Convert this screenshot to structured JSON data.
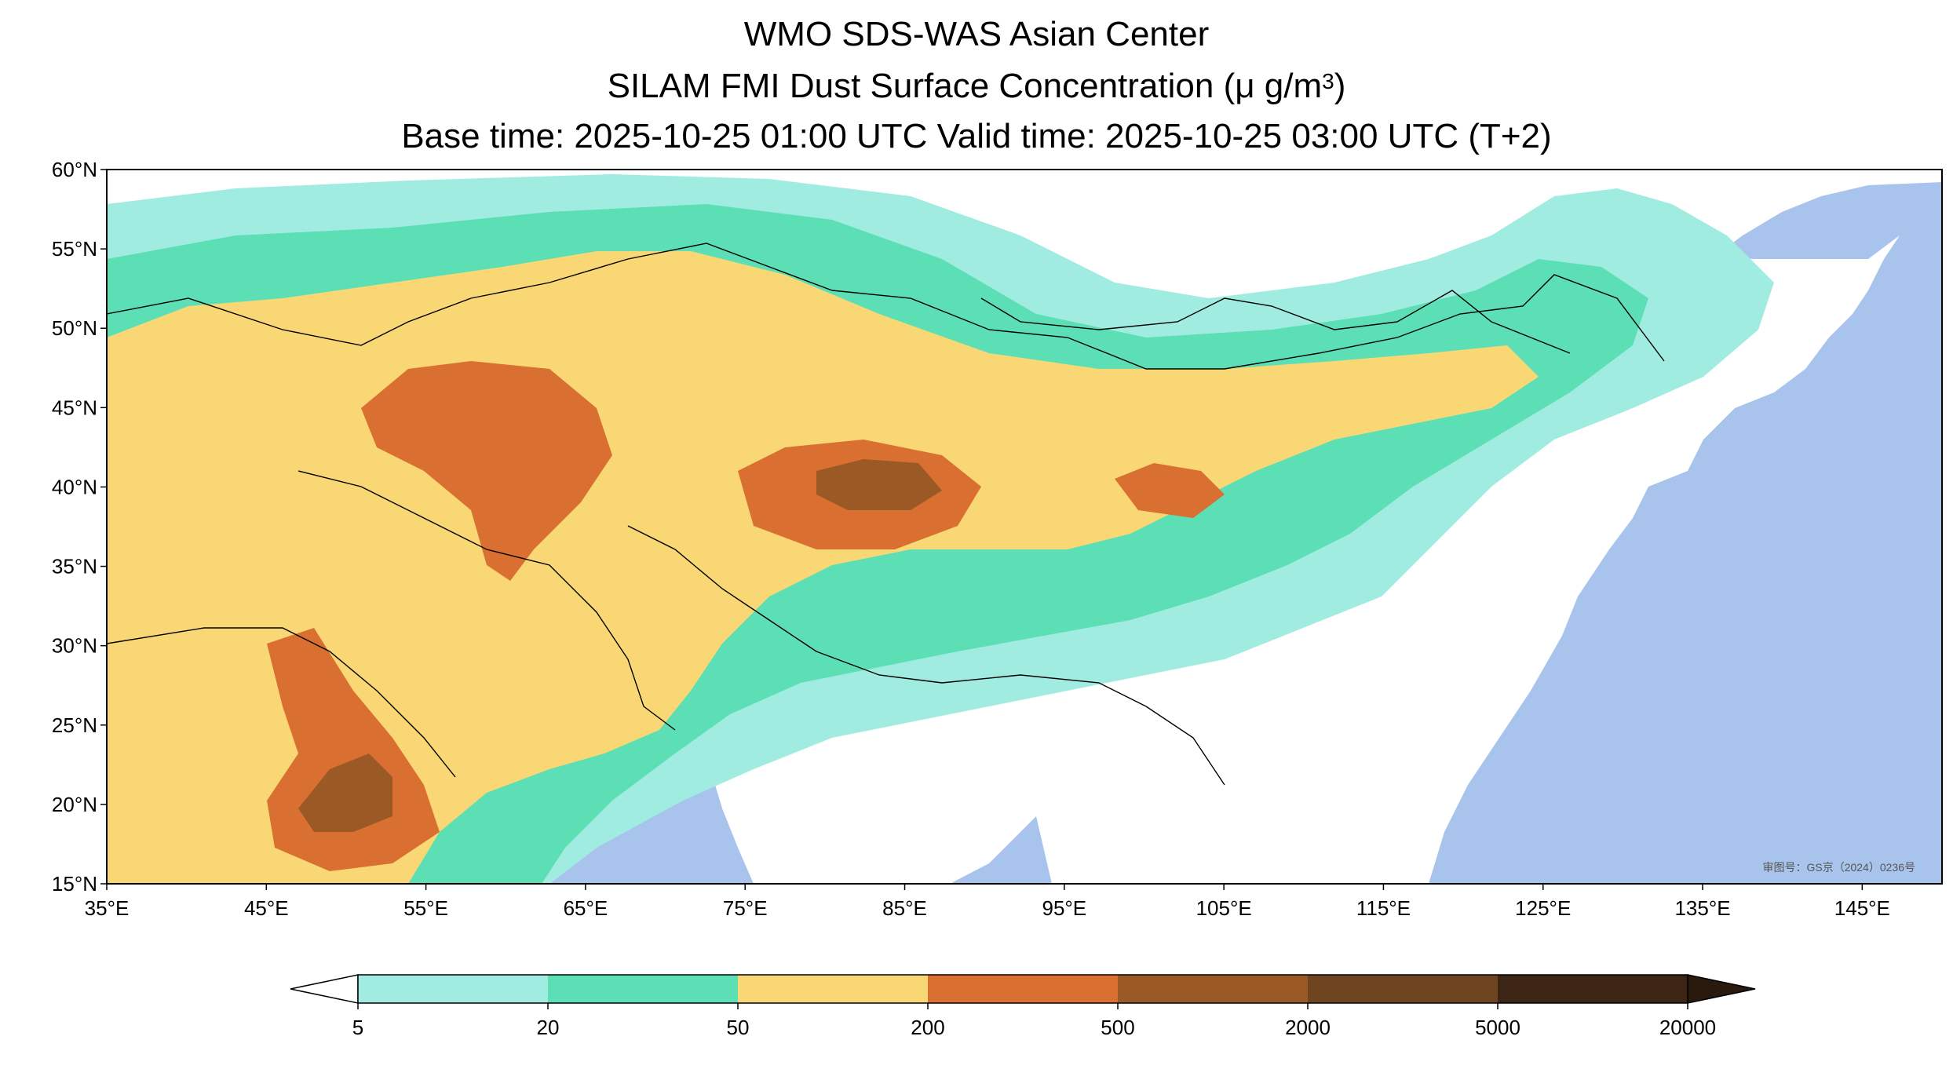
{
  "title": {
    "line1": "WMO SDS-WAS Asian Center",
    "line2_main": "SILAM FMI Dust Surface Concentration (",
    "line2_unit": "μ g/m",
    "line2_sup": "3",
    "line2_end": ")",
    "line3": "Base time: 2025-10-25 01:00 UTC Valid time: 2025-10-25 03:00 UTC (T+2)"
  },
  "map": {
    "lat_labels": [
      "60°N",
      "55°N",
      "50°N",
      "45°N",
      "40°N",
      "35°N",
      "30°N",
      "25°N",
      "20°N",
      "15°N"
    ],
    "lon_labels": [
      "35°E",
      "45°E",
      "55°E",
      "65°E",
      "75°E",
      "85°E",
      "95°E",
      "105°E",
      "115°E",
      "125°E",
      "135°E",
      "145°E"
    ],
    "extent": {
      "lon": [
        35,
        150
      ],
      "lat": [
        15,
        60
      ]
    },
    "approval_text": "审图号：GS京（2024）0236号",
    "ocean_color": "#a9c4ec",
    "land_color": "#ffffff"
  },
  "colorbar": {
    "ticks": [
      "5",
      "20",
      "50",
      "200",
      "500",
      "2000",
      "5000",
      "20000"
    ],
    "colors": [
      "#a1ece1",
      "#5ddfb6",
      "#f9d774",
      "#d97031",
      "#9b5a25",
      "#6f4420",
      "#3c2515"
    ],
    "under_color": "#ffffff",
    "over_color": "#2a1a0e",
    "extend": "both"
  }
}
